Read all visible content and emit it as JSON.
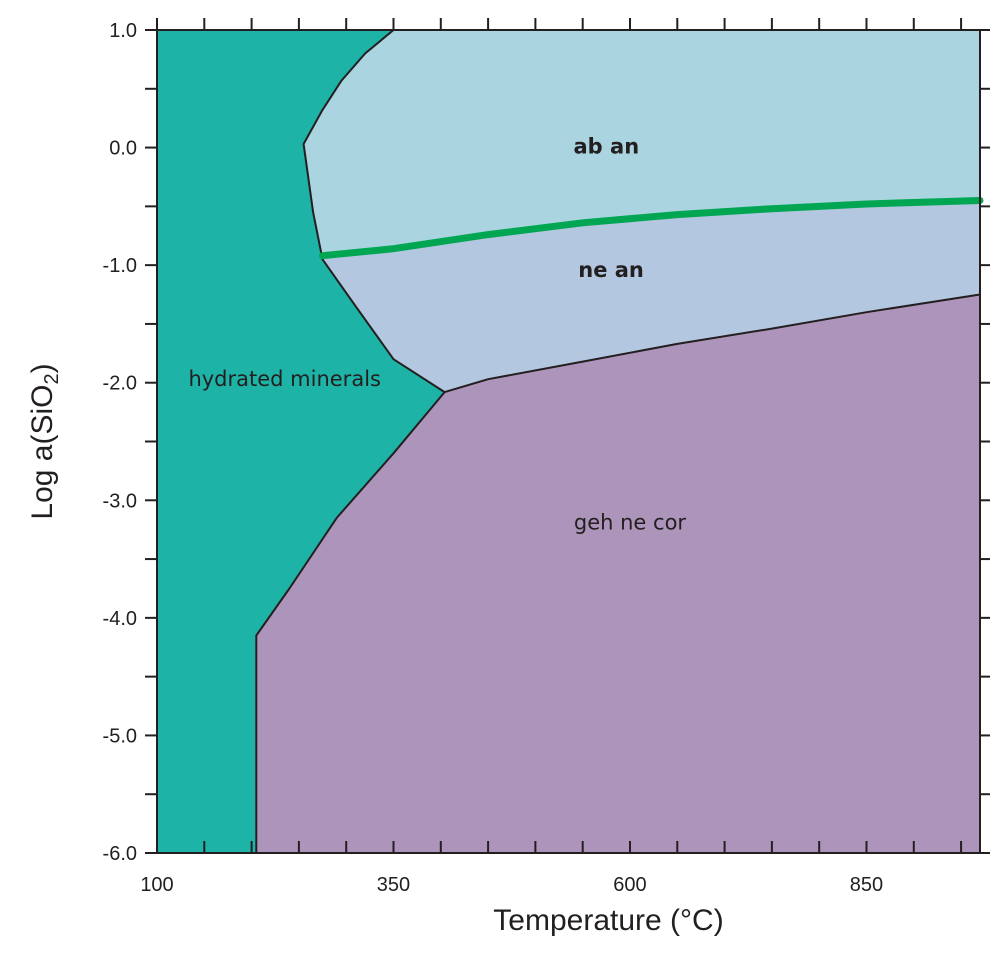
{
  "chart_data": {
    "type": "area",
    "title": "",
    "xlabel": "Temperature (°C)",
    "ylabel_main": "Log a(SiO",
    "ylabel_sub": "2",
    "ylabel_close": ")",
    "xlim": [
      100,
      970
    ],
    "ylim": [
      -6.0,
      1.0
    ],
    "x_ticks": [
      100,
      350,
      600,
      850
    ],
    "x_tick_labels": [
      "100",
      "350",
      "600",
      "850"
    ],
    "x_minor_ticks": [
      100,
      150,
      200,
      250,
      300,
      350,
      400,
      450,
      500,
      550,
      600,
      650,
      700,
      750,
      800,
      850,
      900,
      950
    ],
    "y_ticks": [
      1.0,
      0.0,
      -1.0,
      -2.0,
      -3.0,
      -4.0,
      -5.0,
      -6.0
    ],
    "y_tick_labels": [
      "1.0",
      "0.0",
      "-1.0",
      "-2.0",
      "-3.0",
      "-4.0",
      "-5.0",
      "-6.0"
    ],
    "y_minor_ticks": [
      1.0,
      0.5,
      0.0,
      -0.5,
      -1.0,
      -1.5,
      -2.0,
      -2.5,
      -3.0,
      -3.5,
      -4.0,
      -4.5,
      -5.0,
      -5.5,
      -6.0
    ],
    "grid": false,
    "regions": [
      {
        "name": "hydrated minerals",
        "color": "#1db3a6",
        "bold": false,
        "label_at": [
          235,
          -2.03
        ],
        "polygon": [
          [
            100,
            -6.0
          ],
          [
            100,
            1.0
          ],
          [
            350,
            1.0
          ],
          [
            320,
            0.8
          ],
          [
            295,
            0.57
          ],
          [
            275,
            0.32
          ],
          [
            255,
            0.03
          ],
          [
            265,
            -0.55
          ],
          [
            275,
            -0.95
          ],
          [
            310,
            -1.35
          ],
          [
            350,
            -1.8
          ],
          [
            404,
            -2.08
          ],
          [
            350,
            -2.6
          ],
          [
            290,
            -3.15
          ],
          [
            240,
            -3.75
          ],
          [
            205,
            -4.15
          ],
          [
            205,
            -6.0
          ]
        ]
      },
      {
        "name": "ab an",
        "color": "#a9d4e0",
        "bold": true,
        "label_at": [
          575,
          -0.05
        ],
        "polygon": [
          [
            350,
            1.0
          ],
          [
            970,
            1.0
          ],
          [
            970,
            -0.45
          ],
          [
            850,
            -0.48
          ],
          [
            750,
            -0.52
          ],
          [
            650,
            -0.57
          ],
          [
            550,
            -0.64
          ],
          [
            450,
            -0.74
          ],
          [
            350,
            -0.86
          ],
          [
            275,
            -0.92
          ],
          [
            275,
            -0.95
          ],
          [
            265,
            -0.55
          ],
          [
            255,
            0.03
          ],
          [
            275,
            0.32
          ],
          [
            295,
            0.57
          ],
          [
            320,
            0.8
          ]
        ]
      },
      {
        "name": "ne an",
        "color": "#b4c7e0",
        "bold": true,
        "label_at": [
          580,
          -1.1
        ],
        "polygon": [
          [
            275,
            -0.95
          ],
          [
            275,
            -0.92
          ],
          [
            350,
            -0.86
          ],
          [
            450,
            -0.74
          ],
          [
            550,
            -0.64
          ],
          [
            650,
            -0.57
          ],
          [
            750,
            -0.52
          ],
          [
            850,
            -0.48
          ],
          [
            970,
            -0.45
          ],
          [
            970,
            -1.25
          ],
          [
            850,
            -1.4
          ],
          [
            750,
            -1.54
          ],
          [
            650,
            -1.67
          ],
          [
            550,
            -1.82
          ],
          [
            450,
            -1.97
          ],
          [
            404,
            -2.08
          ],
          [
            350,
            -1.8
          ],
          [
            310,
            -1.35
          ]
        ]
      },
      {
        "name": "geh ne cor",
        "color": "#ad94bb",
        "bold": false,
        "label_at": [
          600,
          -3.25
        ],
        "polygon": [
          [
            205,
            -6.0
          ],
          [
            205,
            -4.15
          ],
          [
            240,
            -3.75
          ],
          [
            290,
            -3.15
          ],
          [
            350,
            -2.6
          ],
          [
            404,
            -2.08
          ],
          [
            450,
            -1.97
          ],
          [
            550,
            -1.82
          ],
          [
            650,
            -1.67
          ],
          [
            750,
            -1.54
          ],
          [
            850,
            -1.4
          ],
          [
            970,
            -1.25
          ],
          [
            970,
            -6.0
          ]
        ]
      }
    ],
    "boundaries": [
      {
        "color": "#231f20",
        "width": 2,
        "points": [
          [
            350,
            1.0
          ],
          [
            320,
            0.8
          ],
          [
            295,
            0.57
          ],
          [
            275,
            0.32
          ],
          [
            255,
            0.03
          ],
          [
            265,
            -0.55
          ],
          [
            275,
            -0.95
          ],
          [
            310,
            -1.35
          ],
          [
            350,
            -1.8
          ],
          [
            404,
            -2.08
          ],
          [
            350,
            -2.6
          ],
          [
            290,
            -3.15
          ],
          [
            240,
            -3.75
          ],
          [
            205,
            -4.15
          ],
          [
            205,
            -6.0
          ],
          [
            100,
            -6.0
          ]
        ]
      },
      {
        "color": "#231f20",
        "width": 2,
        "points": [
          [
            404,
            -2.08
          ],
          [
            450,
            -1.97
          ],
          [
            550,
            -1.82
          ],
          [
            650,
            -1.67
          ],
          [
            750,
            -1.54
          ],
          [
            850,
            -1.4
          ],
          [
            970,
            -1.25
          ]
        ]
      },
      {
        "color": "#00a651",
        "width": 7,
        "points": [
          [
            275,
            -0.92
          ],
          [
            350,
            -0.86
          ],
          [
            450,
            -0.74
          ],
          [
            550,
            -0.64
          ],
          [
            650,
            -0.57
          ],
          [
            750,
            -0.52
          ],
          [
            850,
            -0.48
          ],
          [
            970,
            -0.45
          ]
        ]
      }
    ]
  }
}
